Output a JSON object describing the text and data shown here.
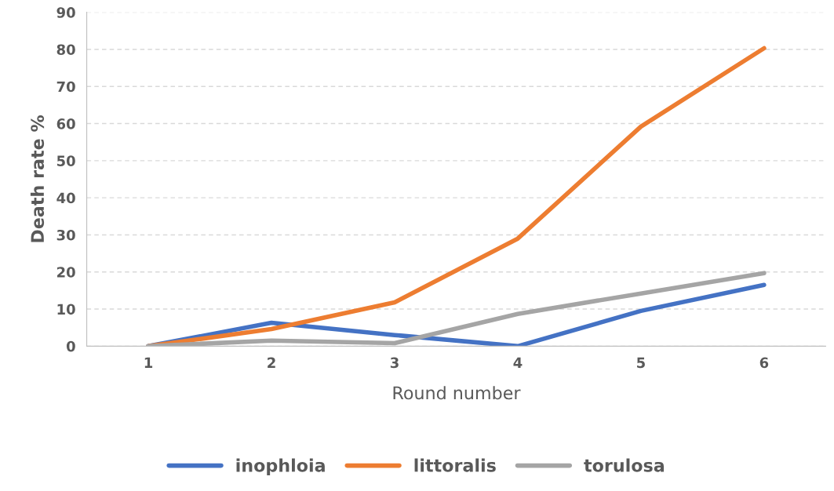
{
  "chart_data": {
    "type": "line",
    "xlabel": "Round number",
    "ylabel": "Death rate %",
    "categories": [
      "1",
      "2",
      "3",
      "4",
      "5",
      "6"
    ],
    "series": [
      {
        "name": "inophloia",
        "color": "#4472c4",
        "values": [
          0,
          6.3,
          3,
          0,
          9.5,
          16.5
        ]
      },
      {
        "name": "littoralis",
        "color": "#ed7d31",
        "values": [
          0,
          4.6,
          11.8,
          29,
          59.2,
          80.3
        ]
      },
      {
        "name": "torulosa",
        "color": "#a5a5a5",
        "values": [
          0,
          1.5,
          0.8,
          8.7,
          14.2,
          19.7
        ]
      }
    ],
    "ylim": [
      0,
      90
    ],
    "yticks": [
      0,
      10,
      20,
      30,
      40,
      50,
      60,
      70,
      80,
      90
    ],
    "grid": "y",
    "legend": "bottom",
    "marker": "none",
    "line_style": "solid"
  }
}
